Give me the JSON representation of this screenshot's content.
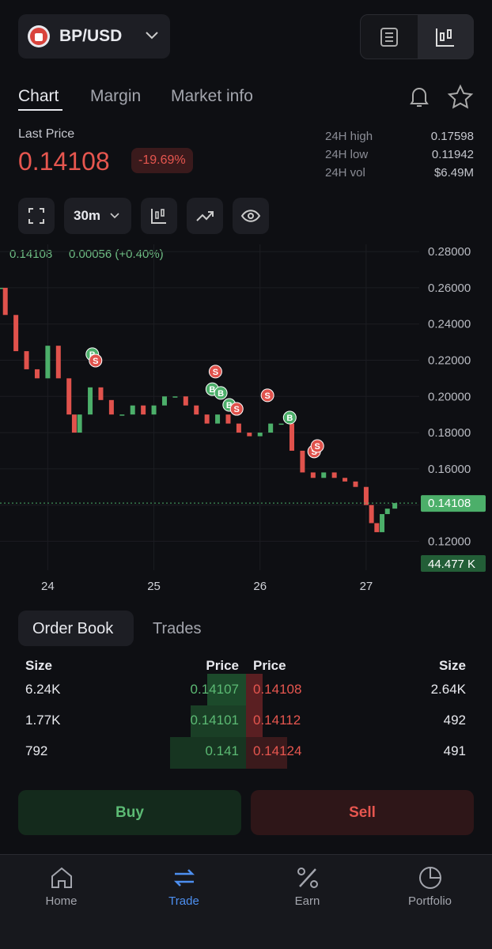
{
  "header": {
    "pair": "BP/USD"
  },
  "tabs": [
    "Chart",
    "Margin",
    "Market info"
  ],
  "price": {
    "label": "Last Price",
    "value": 0.14108,
    "change": "-19.69%"
  },
  "stats": [
    {
      "label": "24H high",
      "value": "0.17598"
    },
    {
      "label": "24H low",
      "value": "0.11942"
    },
    {
      "label": "24H vol",
      "value": "$6.49M"
    }
  ],
  "toolbar": {
    "interval": "30m"
  },
  "chart_data": {
    "type": "candlestick",
    "legend": {
      "price": "0.14108",
      "change": "0.00056 (+0.40%)"
    },
    "x": [
      23.56,
      23.6,
      23.7,
      23.8,
      23.9,
      24.0,
      24.1,
      24.2,
      24.25,
      24.3,
      24.4,
      24.5,
      24.6,
      24.7,
      24.8,
      24.9,
      25.0,
      25.1,
      25.2,
      25.3,
      25.4,
      25.5,
      25.6,
      25.7,
      25.8,
      25.9,
      26.0,
      26.1,
      26.2,
      26.3,
      26.4,
      26.5,
      26.6,
      26.7,
      26.8,
      26.9,
      27.0,
      27.05,
      27.1,
      27.15,
      27.2,
      27.27
    ],
    "values": [
      0.26,
      0.245,
      0.225,
      0.215,
      0.21,
      0.228,
      0.21,
      0.19,
      0.18,
      0.19,
      0.205,
      0.198,
      0.19,
      0.19,
      0.195,
      0.19,
      0.195,
      0.2,
      0.2,
      0.195,
      0.19,
      0.185,
      0.19,
      0.185,
      0.18,
      0.178,
      0.18,
      0.185,
      0.185,
      0.17,
      0.158,
      0.155,
      0.158,
      0.155,
      0.153,
      0.15,
      0.14,
      0.13,
      0.125,
      0.135,
      0.138,
      0.14108
    ],
    "up_color": "#4caf6a",
    "down_color": "#e0524c",
    "xlim": [
      23.55,
      27.5
    ],
    "xticks": [
      24,
      25,
      26,
      27
    ],
    "ylim": [
      0.104,
      0.284
    ],
    "yticks": [
      {
        "value": 0.12,
        "label": "0.12000"
      },
      {
        "value": 0.14,
        "label": "0.14000"
      },
      {
        "value": 0.16,
        "label": "0.16000"
      },
      {
        "value": 0.18,
        "label": "0.18000"
      },
      {
        "value": 0.2,
        "label": "0.20000"
      },
      {
        "value": 0.22,
        "label": "0.22000"
      },
      {
        "value": 0.24,
        "label": "0.24000"
      },
      {
        "value": 0.26,
        "label": "0.26000"
      },
      {
        "value": 0.28,
        "label": "0.28000"
      }
    ],
    "grid": true,
    "last_price": 0.14108,
    "volume_label": "44.477 K",
    "markers": [
      {
        "label": "B",
        "x": 24.42,
        "y": 0.2233
      },
      {
        "label": "S",
        "x": 24.45,
        "y": 0.2198
      },
      {
        "label": "S",
        "x": 25.58,
        "y": 0.2137
      },
      {
        "label": "B",
        "x": 25.55,
        "y": 0.204
      },
      {
        "label": "B",
        "x": 25.63,
        "y": 0.2019
      },
      {
        "label": "B",
        "x": 25.71,
        "y": 0.1953
      },
      {
        "label": "S",
        "x": 25.78,
        "y": 0.1931
      },
      {
        "label": "S",
        "x": 26.07,
        "y": 0.2006
      },
      {
        "label": "B",
        "x": 26.28,
        "y": 0.1883
      },
      {
        "label": "S",
        "x": 26.51,
        "y": 0.1696
      },
      {
        "label": "S",
        "x": 26.54,
        "y": 0.1726
      }
    ]
  },
  "order_book": {
    "tabs": [
      "Order Book",
      "Trades"
    ],
    "headers": [
      "Size",
      "Price",
      "Price",
      "Size"
    ],
    "bids": [
      [
        "6.24K",
        0.14107
      ],
      [
        "1.77K",
        0.14101
      ],
      [
        "792",
        0.141
      ]
    ],
    "asks": [
      [
        0.14108,
        "2.64K"
      ],
      [
        0.14112,
        492
      ],
      [
        0.14124,
        491
      ]
    ]
  },
  "actions": [
    "Buy",
    "Sell"
  ],
  "nav": [
    "Home",
    "Trade",
    "Earn",
    "Portfolio"
  ]
}
